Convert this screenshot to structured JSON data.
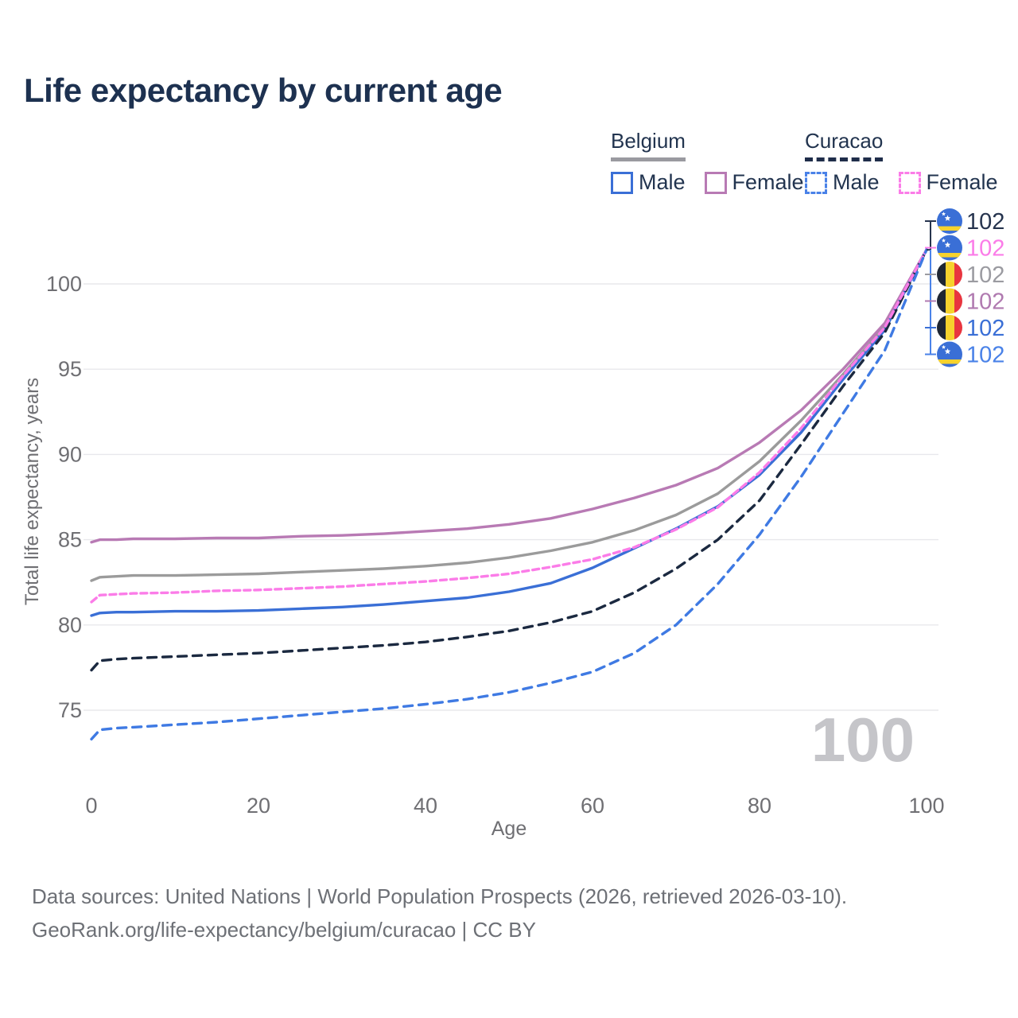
{
  "title": "Life expectancy by current age",
  "legend": {
    "groups": [
      {
        "label": "Belgium",
        "line_style": "solid",
        "underline_color": "#9a9aa0",
        "items": [
          {
            "label": "Male",
            "color": "#3a6fd6"
          },
          {
            "label": "Female",
            "color": "#b87ab4"
          }
        ]
      },
      {
        "label": "Curacao",
        "line_style": "dashed",
        "underline_color": "#1f2d4a",
        "items": [
          {
            "label": "Male",
            "color": "#4a82e8"
          },
          {
            "label": "Female",
            "color": "#fb7ce8"
          }
        ]
      }
    ]
  },
  "chart_data": {
    "type": "line",
    "title": "Life expectancy by current age",
    "xlabel": "Age",
    "ylabel": "Total life expectancy, years",
    "xlim": [
      0,
      100
    ],
    "ylim": [
      73,
      103
    ],
    "x_ticks": [
      0,
      20,
      40,
      60,
      80,
      100
    ],
    "y_ticks": [
      75,
      80,
      85,
      90,
      95,
      100
    ],
    "grid": "horizontal-only",
    "legend_position": "top-right",
    "watermark": "100",
    "series": [
      {
        "name": "Belgium",
        "sex": "both",
        "color": "#9b9b9b",
        "dash": "",
        "points": [
          [
            0,
            82.6
          ],
          [
            1,
            82.8
          ],
          [
            3,
            82.85
          ],
          [
            5,
            82.9
          ],
          [
            10,
            82.9
          ],
          [
            15,
            82.95
          ],
          [
            20,
            83.0
          ],
          [
            25,
            83.1
          ],
          [
            30,
            83.2
          ],
          [
            35,
            83.3
          ],
          [
            40,
            83.45
          ],
          [
            45,
            83.65
          ],
          [
            50,
            83.95
          ],
          [
            55,
            84.35
          ],
          [
            60,
            84.85
          ],
          [
            65,
            85.55
          ],
          [
            70,
            86.45
          ],
          [
            75,
            87.7
          ],
          [
            80,
            89.6
          ],
          [
            85,
            92.0
          ],
          [
            90,
            94.7
          ],
          [
            95,
            97.5
          ],
          [
            100,
            102
          ]
        ]
      },
      {
        "name": "Belgium Female",
        "sex": "female",
        "color": "#b87ab4",
        "dash": "",
        "points": [
          [
            0,
            84.85
          ],
          [
            1,
            85.0
          ],
          [
            3,
            85.0
          ],
          [
            5,
            85.05
          ],
          [
            10,
            85.05
          ],
          [
            15,
            85.1
          ],
          [
            20,
            85.1
          ],
          [
            25,
            85.2
          ],
          [
            30,
            85.25
          ],
          [
            35,
            85.35
          ],
          [
            40,
            85.5
          ],
          [
            45,
            85.65
          ],
          [
            50,
            85.9
          ],
          [
            55,
            86.25
          ],
          [
            60,
            86.8
          ],
          [
            65,
            87.45
          ],
          [
            70,
            88.2
          ],
          [
            75,
            89.2
          ],
          [
            80,
            90.7
          ],
          [
            85,
            92.6
          ],
          [
            90,
            95.0
          ],
          [
            95,
            97.7
          ],
          [
            100,
            102
          ]
        ]
      },
      {
        "name": "Belgium Male",
        "sex": "male",
        "color": "#3a6fd6",
        "dash": "",
        "points": [
          [
            0,
            80.55
          ],
          [
            1,
            80.7
          ],
          [
            3,
            80.75
          ],
          [
            5,
            80.75
          ],
          [
            10,
            80.8
          ],
          [
            15,
            80.8
          ],
          [
            20,
            80.85
          ],
          [
            25,
            80.95
          ],
          [
            30,
            81.05
          ],
          [
            35,
            81.2
          ],
          [
            40,
            81.4
          ],
          [
            45,
            81.6
          ],
          [
            50,
            81.95
          ],
          [
            55,
            82.45
          ],
          [
            60,
            83.35
          ],
          [
            65,
            84.5
          ],
          [
            70,
            85.65
          ],
          [
            75,
            86.95
          ],
          [
            80,
            88.8
          ],
          [
            85,
            91.3
          ],
          [
            90,
            94.4
          ],
          [
            95,
            97.3
          ],
          [
            100,
            102
          ]
        ]
      },
      {
        "name": "Curacao",
        "sex": "both",
        "color": "#1b2940",
        "dash": "11 8",
        "points": [
          [
            0,
            77.35
          ],
          [
            1,
            77.9
          ],
          [
            3,
            78.0
          ],
          [
            5,
            78.05
          ],
          [
            10,
            78.15
          ],
          [
            15,
            78.25
          ],
          [
            20,
            78.35
          ],
          [
            25,
            78.5
          ],
          [
            30,
            78.65
          ],
          [
            35,
            78.8
          ],
          [
            40,
            79.0
          ],
          [
            45,
            79.3
          ],
          [
            50,
            79.65
          ],
          [
            55,
            80.15
          ],
          [
            60,
            80.8
          ],
          [
            65,
            81.9
          ],
          [
            70,
            83.3
          ],
          [
            75,
            85.0
          ],
          [
            80,
            87.3
          ],
          [
            85,
            90.6
          ],
          [
            90,
            94.0
          ],
          [
            95,
            97.15
          ],
          [
            100,
            102
          ]
        ]
      },
      {
        "name": "Curacao Female",
        "sex": "female",
        "color": "#fb7ce8",
        "dash": "8 5",
        "points": [
          [
            0,
            81.35
          ],
          [
            1,
            81.75
          ],
          [
            3,
            81.8
          ],
          [
            5,
            81.85
          ],
          [
            10,
            81.9
          ],
          [
            15,
            82.0
          ],
          [
            20,
            82.05
          ],
          [
            25,
            82.15
          ],
          [
            30,
            82.25
          ],
          [
            35,
            82.4
          ],
          [
            40,
            82.55
          ],
          [
            45,
            82.75
          ],
          [
            50,
            83.0
          ],
          [
            55,
            83.4
          ],
          [
            60,
            83.85
          ],
          [
            65,
            84.55
          ],
          [
            70,
            85.6
          ],
          [
            75,
            86.9
          ],
          [
            80,
            88.95
          ],
          [
            85,
            91.55
          ],
          [
            90,
            94.6
          ],
          [
            95,
            97.45
          ],
          [
            100,
            102
          ]
        ]
      },
      {
        "name": "Curacao Male",
        "sex": "male",
        "color": "#3f7ae3",
        "dash": "11 8",
        "points": [
          [
            0,
            73.3
          ],
          [
            1,
            73.85
          ],
          [
            3,
            73.95
          ],
          [
            5,
            74.0
          ],
          [
            10,
            74.15
          ],
          [
            15,
            74.3
          ],
          [
            20,
            74.5
          ],
          [
            25,
            74.7
          ],
          [
            30,
            74.9
          ],
          [
            35,
            75.1
          ],
          [
            40,
            75.35
          ],
          [
            45,
            75.65
          ],
          [
            50,
            76.05
          ],
          [
            55,
            76.6
          ],
          [
            60,
            77.25
          ],
          [
            65,
            78.35
          ],
          [
            70,
            80.0
          ],
          [
            75,
            82.4
          ],
          [
            80,
            85.3
          ],
          [
            85,
            88.7
          ],
          [
            90,
            92.4
          ],
          [
            95,
            96.1
          ],
          [
            100,
            102
          ]
        ]
      }
    ],
    "end_labels": [
      {
        "flag": "curacao",
        "series": "Curacao",
        "value": "102",
        "color": "#26344e"
      },
      {
        "flag": "curacao",
        "series": "Curacao Female",
        "value": "102",
        "color": "#fb7ce8"
      },
      {
        "flag": "belgium",
        "series": "Belgium",
        "value": "102",
        "color": "#9b9ba1"
      },
      {
        "flag": "belgium",
        "series": "Belgium Female",
        "value": "102",
        "color": "#b07ab0"
      },
      {
        "flag": "belgium",
        "series": "Belgium Male",
        "value": "102",
        "color": "#3a6fd6"
      },
      {
        "flag": "curacao",
        "series": "Curacao Male",
        "value": "102",
        "color": "#4a82e8"
      }
    ]
  },
  "footer": {
    "line1": "Data sources: United Nations | World Population Prospects (2026, retrieved 2026-03-10).",
    "line2": "GeoRank.org/life-expectancy/belgium/curacao | CC BY"
  }
}
